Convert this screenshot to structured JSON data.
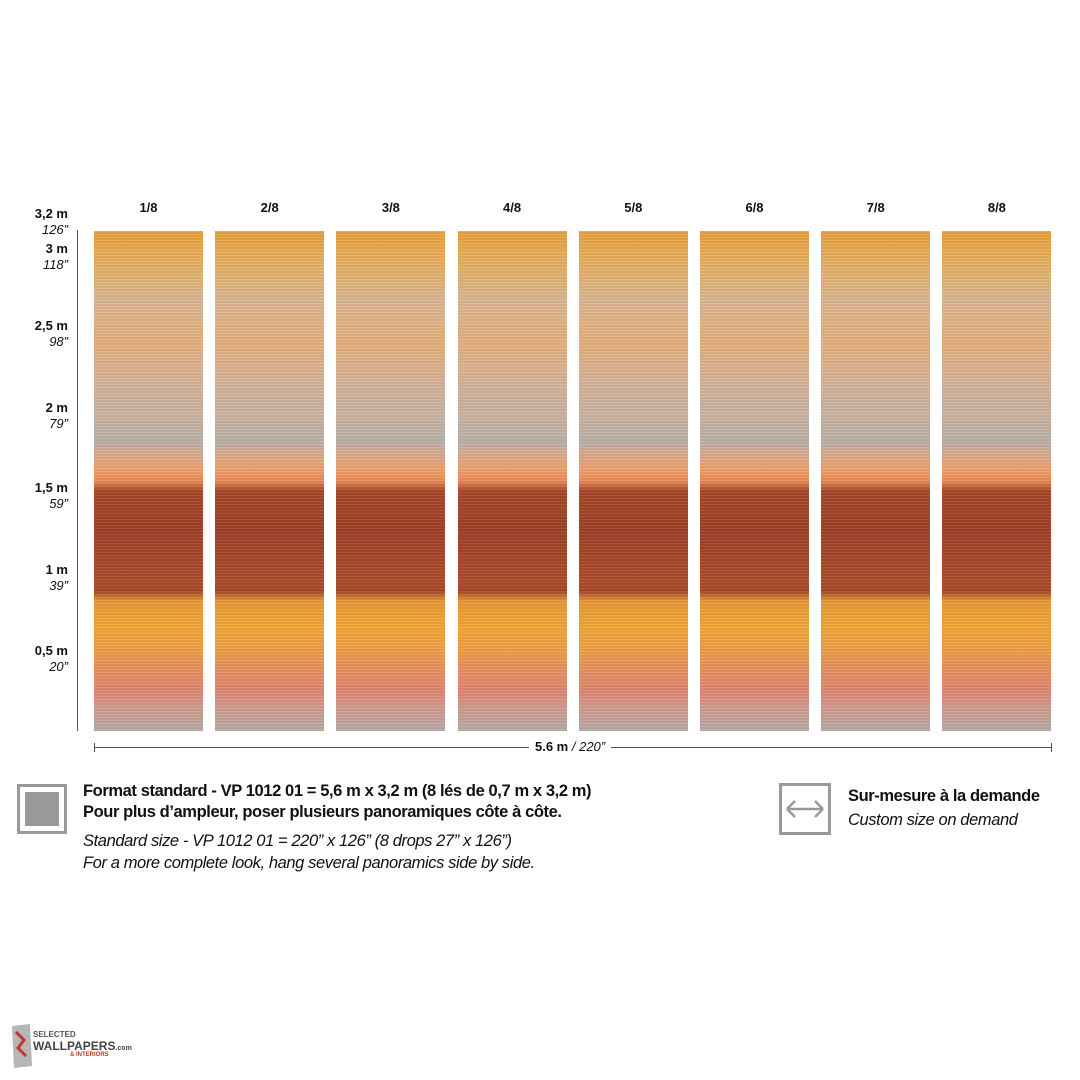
{
  "panels": [
    "1/8",
    "2/8",
    "3/8",
    "4/8",
    "5/8",
    "6/8",
    "7/8",
    "8/8"
  ],
  "height_scale": [
    {
      "metric": "3,2 m",
      "imperial": "126”"
    },
    {
      "metric": "3 m",
      "imperial": "118”"
    },
    {
      "metric": "2,5 m",
      "imperial": "98”"
    },
    {
      "metric": "2 m",
      "imperial": "79”"
    },
    {
      "metric": "1,5 m",
      "imperial": "59”"
    },
    {
      "metric": "1 m",
      "imperial": "39”"
    },
    {
      "metric": "0,5 m",
      "imperial": "20”"
    }
  ],
  "width_label": {
    "metric": "5.6 m",
    "imperial": " / 220”"
  },
  "standard": {
    "line1": "Format standard - VP 1012 01 = 5,6 m x 3,2 m (8 lés de 0,7 m x 3,2 m)",
    "line2": "Pour plus d’ampleur, poser plusieurs panoramiques côte à côte.",
    "line3": "Standard size - VP 1012 01 = 220” x 126” (8 drops 27” x 126”)",
    "line4": "For a more complete look, hang several panoramics side by side."
  },
  "custom": {
    "line1": "Sur-mesure à la demande",
    "line2": "Custom size on demand"
  },
  "logo": {
    "top": "SELECTED",
    "main": "WALLPAPERS",
    "suffix": ".com",
    "sub": "& INTERIORS"
  }
}
